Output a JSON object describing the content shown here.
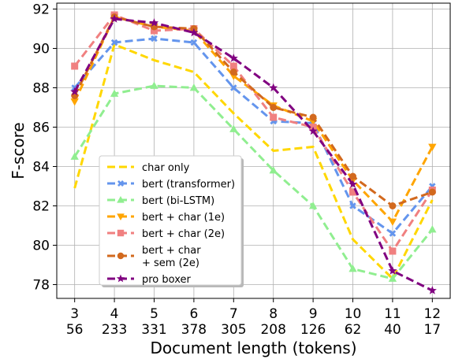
{
  "chart_data": {
    "type": "line",
    "xlabel": "Document length (tokens)",
    "ylabel": "F-score",
    "ylim": [
      77.3,
      92.3
    ],
    "yticks": [
      78,
      80,
      82,
      84,
      86,
      88,
      90,
      92
    ],
    "categories_top": [
      "3",
      "4",
      "5",
      "6",
      "7",
      "8",
      "9",
      "10",
      "11",
      "12"
    ],
    "categories_bottom": [
      "56",
      "233",
      "331",
      "378",
      "305",
      "208",
      "126",
      "62",
      "40",
      "17"
    ],
    "x": [
      3,
      4,
      5,
      6,
      7,
      8,
      9,
      10,
      11,
      12
    ],
    "grid": true,
    "legend_position": "lower-left",
    "series": [
      {
        "name": "char only",
        "color": "#FFD700",
        "marker": "none",
        "values": [
          82.9,
          90.2,
          89.4,
          88.8,
          86.7,
          84.8,
          85.0,
          80.3,
          78.3,
          82.3
        ]
      },
      {
        "name": "bert (transformer)",
        "color": "#6495ED",
        "marker": "x",
        "values": [
          88.0,
          90.3,
          90.5,
          90.3,
          88.0,
          86.3,
          86.2,
          82.0,
          80.6,
          83.0
        ]
      },
      {
        "name": "bert (bi-LSTM)",
        "color": "#90EE90",
        "marker": "triangle-up",
        "values": [
          84.5,
          87.7,
          88.1,
          88.0,
          85.9,
          83.8,
          82.0,
          78.8,
          78.3,
          80.8
        ]
      },
      {
        "name": "bert + char (1e)",
        "color": "#FFA500",
        "marker": "triangle-down",
        "values": [
          87.3,
          91.6,
          91.1,
          90.9,
          88.6,
          87.1,
          86.3,
          83.3,
          81.2,
          85.0
        ]
      },
      {
        "name": "bert + char (2e)",
        "color": "#F08080",
        "marker": "square",
        "values": [
          89.1,
          91.7,
          90.9,
          91.0,
          89.1,
          86.5,
          86.0,
          82.7,
          79.7,
          82.8
        ]
      },
      {
        "name": "bert + char\n+ sem (2e)",
        "color": "#D2691E",
        "marker": "circle",
        "values": [
          87.6,
          91.6,
          91.1,
          91.0,
          88.8,
          87.0,
          86.5,
          83.5,
          82.0,
          82.7
        ]
      },
      {
        "name": "pro boxer",
        "color": "#800080",
        "marker": "star",
        "values": [
          87.8,
          91.5,
          91.3,
          90.8,
          89.5,
          88.0,
          85.8,
          83.1,
          78.7,
          77.7
        ]
      }
    ]
  }
}
